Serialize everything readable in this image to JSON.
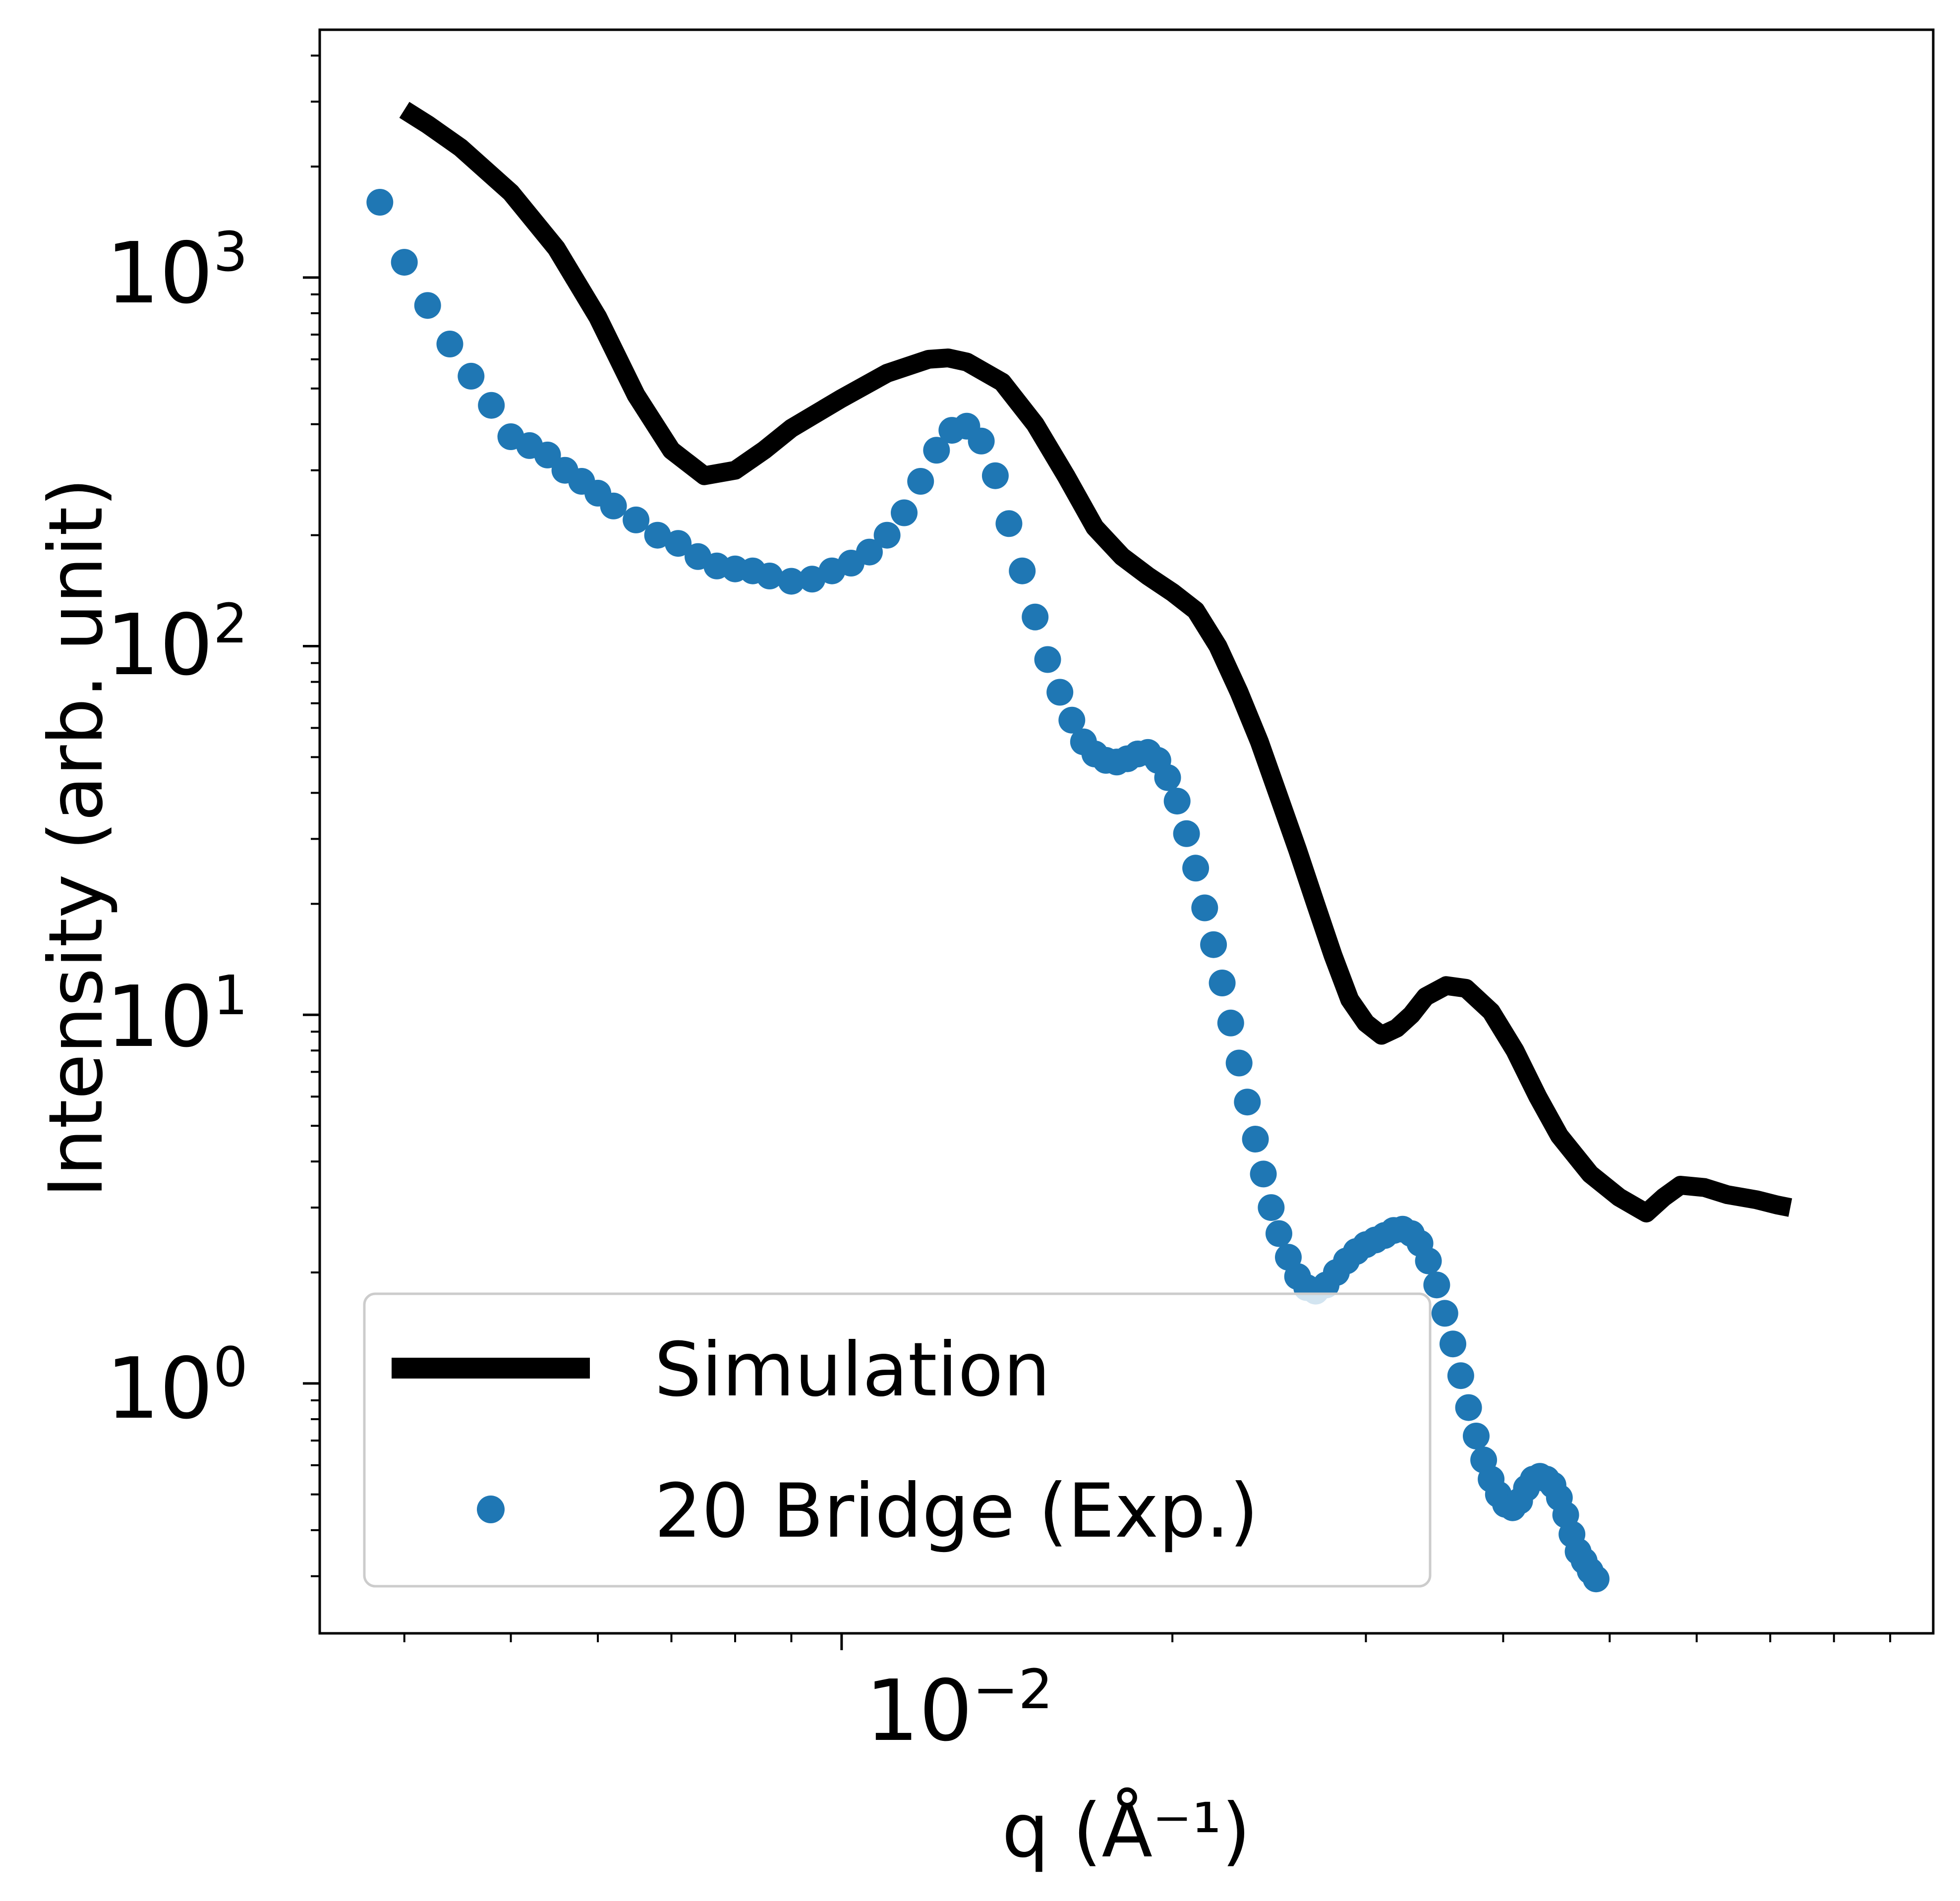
{
  "chart_data": {
    "type": "line",
    "xlabel": "q (Å⁻¹)",
    "ylabel": "Intensity (arb. unit)",
    "x_scale": "log",
    "y_scale": "log",
    "xlim": [
      0.00335,
      0.0985
    ],
    "ylim": [
      0.21,
      4700
    ],
    "x_major_ticks": [
      {
        "value": 0.01,
        "label": "10",
        "exp": "−2"
      }
    ],
    "y_major_ticks": [
      {
        "value": 1,
        "label": "10",
        "exp": "0"
      },
      {
        "value": 10,
        "label": "10",
        "exp": "1"
      },
      {
        "value": 100,
        "label": "10",
        "exp": "2"
      },
      {
        "value": 1000,
        "label": "10",
        "exp": "3"
      }
    ],
    "grid": false,
    "legend_position": "lower-left",
    "series": [
      {
        "name": "Simulation",
        "style": "line",
        "color": "#000000",
        "points": [
          [
            0.004,
            2850
          ],
          [
            0.0042,
            2600
          ],
          [
            0.0045,
            2250
          ],
          [
            0.005,
            1700
          ],
          [
            0.0055,
            1200
          ],
          [
            0.006,
            780
          ],
          [
            0.0065,
            480
          ],
          [
            0.007,
            340
          ],
          [
            0.0075,
            290
          ],
          [
            0.008,
            300
          ],
          [
            0.0085,
            340
          ],
          [
            0.009,
            390
          ],
          [
            0.01,
            470
          ],
          [
            0.011,
            550
          ],
          [
            0.012,
            600
          ],
          [
            0.0125,
            605
          ],
          [
            0.013,
            590
          ],
          [
            0.014,
            520
          ],
          [
            0.015,
            400
          ],
          [
            0.016,
            290
          ],
          [
            0.017,
            210
          ],
          [
            0.018,
            175
          ],
          [
            0.019,
            155
          ],
          [
            0.02,
            140
          ],
          [
            0.021,
            125
          ],
          [
            0.022,
            100
          ],
          [
            0.023,
            75
          ],
          [
            0.024,
            55
          ],
          [
            0.025,
            39
          ],
          [
            0.026,
            28
          ],
          [
            0.027,
            20
          ],
          [
            0.028,
            14.5
          ],
          [
            0.029,
            11
          ],
          [
            0.03,
            9.5
          ],
          [
            0.031,
            8.8
          ],
          [
            0.032,
            9.2
          ],
          [
            0.033,
            10.0
          ],
          [
            0.034,
            11.2
          ],
          [
            0.0355,
            12.0
          ],
          [
            0.037,
            11.8
          ],
          [
            0.039,
            10.2
          ],
          [
            0.041,
            8.0
          ],
          [
            0.043,
            6.0
          ],
          [
            0.045,
            4.7
          ],
          [
            0.048,
            3.7
          ],
          [
            0.051,
            3.2
          ],
          [
            0.054,
            2.9
          ],
          [
            0.056,
            3.2
          ],
          [
            0.058,
            3.45
          ],
          [
            0.061,
            3.4
          ],
          [
            0.064,
            3.25
          ],
          [
            0.068,
            3.15
          ],
          [
            0.071,
            3.05
          ],
          [
            0.073,
            3.0
          ]
        ]
      },
      {
        "name": "20 Bridge (Exp.)",
        "style": "scatter",
        "color": "#1f77b4",
        "points": [
          [
            0.0038,
            1600
          ],
          [
            0.004,
            1100
          ],
          [
            0.0042,
            840
          ],
          [
            0.0044,
            660
          ],
          [
            0.0046,
            540
          ],
          [
            0.0048,
            450
          ],
          [
            0.005,
            370
          ],
          [
            0.0052,
            350
          ],
          [
            0.0054,
            330
          ],
          [
            0.0056,
            300
          ],
          [
            0.0058,
            280
          ],
          [
            0.006,
            260
          ],
          [
            0.0062,
            240
          ],
          [
            0.0065,
            220
          ],
          [
            0.0068,
            200
          ],
          [
            0.0071,
            190
          ],
          [
            0.0074,
            175
          ],
          [
            0.0077,
            165
          ],
          [
            0.008,
            162
          ],
          [
            0.0083,
            160
          ],
          [
            0.0086,
            155
          ],
          [
            0.009,
            150
          ],
          [
            0.0094,
            152
          ],
          [
            0.0098,
            160
          ],
          [
            0.0102,
            168
          ],
          [
            0.0106,
            180
          ],
          [
            0.011,
            200
          ],
          [
            0.0114,
            230
          ],
          [
            0.0118,
            280
          ],
          [
            0.0122,
            340
          ],
          [
            0.0126,
            385
          ],
          [
            0.013,
            395
          ],
          [
            0.0134,
            360
          ],
          [
            0.0138,
            290
          ],
          [
            0.0142,
            215
          ],
          [
            0.0146,
            160
          ],
          [
            0.015,
            120
          ],
          [
            0.0154,
            92
          ],
          [
            0.0158,
            75
          ],
          [
            0.0162,
            63
          ],
          [
            0.0166,
            55
          ],
          [
            0.017,
            51
          ],
          [
            0.0174,
            49
          ],
          [
            0.0178,
            48.5
          ],
          [
            0.0182,
            49.5
          ],
          [
            0.0186,
            51
          ],
          [
            0.019,
            51.5
          ],
          [
            0.0194,
            49
          ],
          [
            0.0198,
            44
          ],
          [
            0.0202,
            38
          ],
          [
            0.0206,
            31
          ],
          [
            0.021,
            25
          ],
          [
            0.0214,
            19.5
          ],
          [
            0.0218,
            15.5
          ],
          [
            0.0222,
            12.2
          ],
          [
            0.0226,
            9.5
          ],
          [
            0.023,
            7.4
          ],
          [
            0.0234,
            5.8
          ],
          [
            0.0238,
            4.6
          ],
          [
            0.0242,
            3.7
          ],
          [
            0.0246,
            3.0
          ],
          [
            0.025,
            2.55
          ],
          [
            0.0255,
            2.2
          ],
          [
            0.026,
            1.95
          ],
          [
            0.0265,
            1.82
          ],
          [
            0.027,
            1.78
          ],
          [
            0.0276,
            1.85
          ],
          [
            0.0282,
            2.0
          ],
          [
            0.0288,
            2.15
          ],
          [
            0.0294,
            2.28
          ],
          [
            0.03,
            2.38
          ],
          [
            0.0306,
            2.45
          ],
          [
            0.0312,
            2.52
          ],
          [
            0.0318,
            2.6
          ],
          [
            0.0324,
            2.62
          ],
          [
            0.033,
            2.55
          ],
          [
            0.0336,
            2.4
          ],
          [
            0.0342,
            2.15
          ],
          [
            0.0348,
            1.85
          ],
          [
            0.0354,
            1.55
          ],
          [
            0.036,
            1.28
          ],
          [
            0.0366,
            1.05
          ],
          [
            0.0372,
            0.86
          ],
          [
            0.0378,
            0.72
          ],
          [
            0.0384,
            0.62
          ],
          [
            0.039,
            0.55
          ],
          [
            0.0396,
            0.5
          ],
          [
            0.0402,
            0.47
          ],
          [
            0.0408,
            0.46
          ],
          [
            0.0414,
            0.48
          ],
          [
            0.042,
            0.52
          ],
          [
            0.0426,
            0.55
          ],
          [
            0.0432,
            0.56
          ],
          [
            0.0438,
            0.55
          ],
          [
            0.0444,
            0.53
          ],
          [
            0.045,
            0.49
          ],
          [
            0.0456,
            0.44
          ],
          [
            0.0462,
            0.39
          ],
          [
            0.0468,
            0.35
          ],
          [
            0.0474,
            0.33
          ],
          [
            0.048,
            0.31
          ],
          [
            0.0486,
            0.295
          ]
        ]
      }
    ]
  },
  "legend": {
    "items": [
      {
        "label": "Simulation"
      },
      {
        "label": "20 Bridge (Exp.)"
      }
    ]
  },
  "ticks": {
    "x_1e-2_base": "10",
    "x_1e-2_exp": "−2",
    "y_1e0_base": "10",
    "y_1e0_exp": "0",
    "y_1e1_base": "10",
    "y_1e1_exp": "1",
    "y_1e2_base": "10",
    "y_1e2_exp": "2",
    "y_1e3_base": "10",
    "y_1e3_exp": "3"
  }
}
